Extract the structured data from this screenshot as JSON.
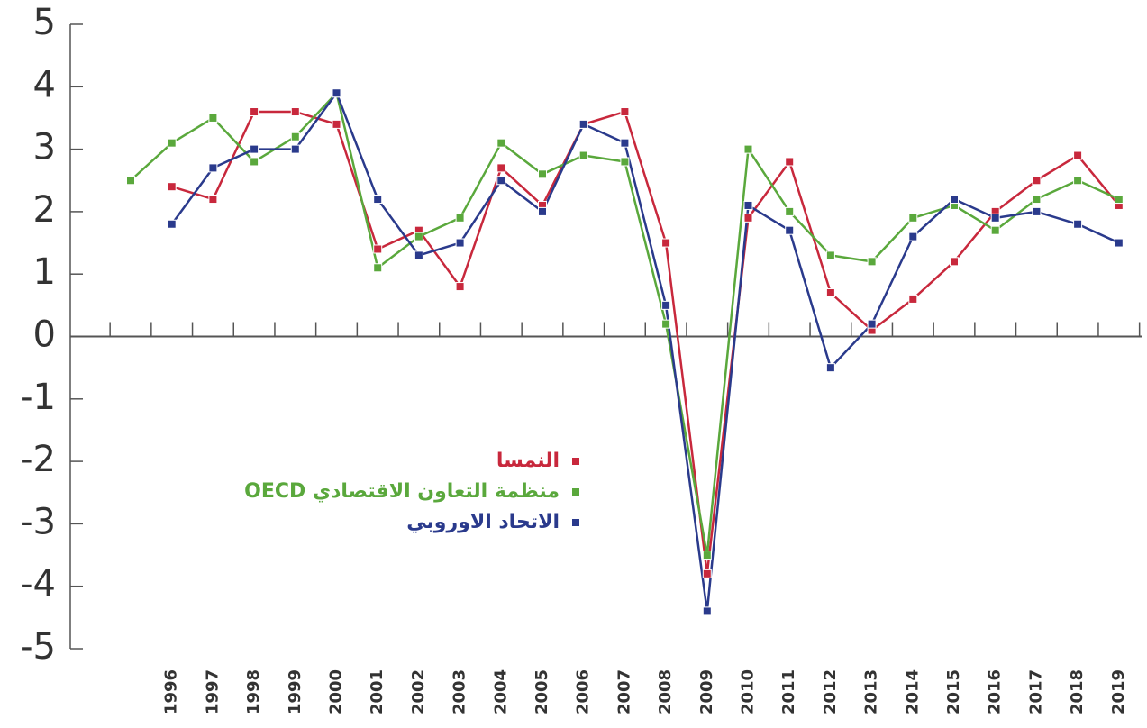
{
  "chart_data": {
    "type": "line",
    "categories": [
      null,
      "1996",
      "1997",
      "1998",
      "1999",
      "2000",
      "2001",
      "2002",
      "2003",
      "2004",
      "2005",
      "2006",
      "2007",
      "2008",
      "2009",
      "2010",
      "2011",
      "2012",
      "2013",
      "2014",
      "2015",
      "2016",
      "2017",
      "2018",
      "2019"
    ],
    "series": [
      {
        "name": "النمسا",
        "color": "#c8283c",
        "values": [
          null,
          2.4,
          2.2,
          3.6,
          3.6,
          3.4,
          1.4,
          1.7,
          0.8,
          2.7,
          2.1,
          3.4,
          3.6,
          1.5,
          -3.8,
          1.9,
          2.8,
          0.7,
          0.1,
          0.6,
          1.2,
          2.0,
          2.5,
          2.9,
          2.1
        ]
      },
      {
        "name": "منظمة التعاون الاقتصادي OECD",
        "color": "#5aa83c",
        "values": [
          2.5,
          3.1,
          3.5,
          2.8,
          3.2,
          3.9,
          1.1,
          1.6,
          1.9,
          3.1,
          2.6,
          2.9,
          2.8,
          0.2,
          -3.5,
          3.0,
          2.0,
          1.3,
          1.2,
          1.9,
          2.1,
          1.7,
          2.2,
          2.5,
          2.2
        ]
      },
      {
        "name": "الاتحاد الاوروبي",
        "color": "#2a3a8c",
        "values": [
          null,
          1.8,
          2.7,
          3.0,
          3.0,
          3.9,
          2.2,
          1.3,
          1.5,
          2.5,
          2.0,
          3.4,
          3.1,
          0.5,
          -4.4,
          2.1,
          1.7,
          -0.5,
          0.2,
          1.6,
          2.2,
          1.9,
          2.0,
          1.8,
          1.5
        ]
      }
    ],
    "ylim": [
      -5,
      5
    ],
    "yticks": [
      -5,
      -4,
      -3,
      -2,
      -1,
      0,
      1,
      2,
      3,
      4,
      5
    ],
    "grid": false
  }
}
